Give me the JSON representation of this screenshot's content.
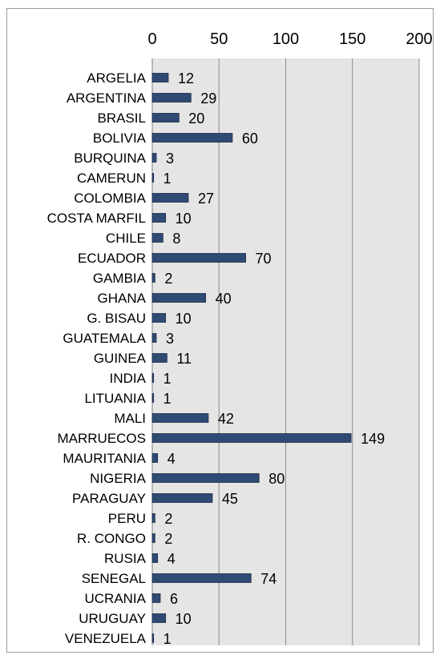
{
  "chart_data": {
    "type": "bar",
    "orientation": "horizontal",
    "categories": [
      "ARGELIA",
      "ARGENTINA",
      "BRASIL",
      "BOLIVIA",
      "BURQUINA",
      "CAMERUN",
      "COLOMBIA",
      "COSTA MARFIL",
      "CHILE",
      "ECUADOR",
      "GAMBIA",
      "GHANA",
      "G. BISAU",
      "GUATEMALA",
      "GUINEA",
      "INDIA",
      "LITUANIA",
      "MALI",
      "MARRUECOS",
      "MAURITANIA",
      "NIGERIA",
      "PARAGUAY",
      "PERU",
      "R. CONGO",
      "RUSIA",
      "SENEGAL",
      "UCRANIA",
      "URUGUAY",
      "VENEZUELA"
    ],
    "values": [
      12,
      29,
      20,
      60,
      3,
      1,
      27,
      10,
      8,
      70,
      2,
      40,
      10,
      3,
      11,
      1,
      1,
      42,
      149,
      4,
      80,
      45,
      2,
      2,
      4,
      74,
      6,
      10,
      1
    ],
    "xlim": [
      0,
      200
    ],
    "xticks": [
      "0",
      "50",
      "100",
      "150",
      "200"
    ],
    "x_axis_position": "top",
    "grid": true,
    "title": "",
    "xlabel": "",
    "ylabel": "",
    "colors": {
      "bar_fill": "#2f4a73",
      "bar_edge": "#1a2a45",
      "gridline": "#8c8c8c",
      "plot_background": "#e5e5e5",
      "axis": "#7f7f7f"
    }
  }
}
